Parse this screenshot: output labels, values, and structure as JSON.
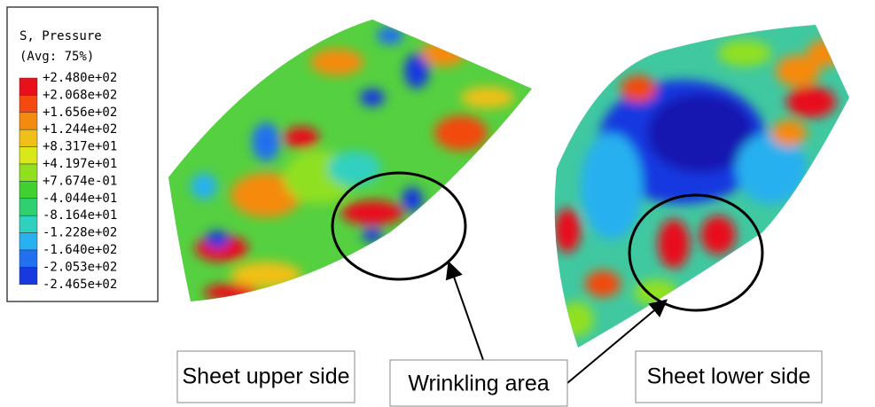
{
  "legend": {
    "title": "S, Pressure",
    "subtitle": "(Avg: 75%)",
    "levels": [
      "+2.480e+02",
      "+2.068e+02",
      "+1.656e+02",
      "+1.244e+02",
      "+8.317e+01",
      "+4.197e+01",
      "+7.674e-01",
      "-4.044e+01",
      "-8.164e+01",
      "-1.228e+02",
      "-1.640e+02",
      "-2.053e+02",
      "-2.465e+02"
    ]
  },
  "captions": {
    "upper": "Sheet upper side",
    "wrinkling": "Wrinkling area",
    "lower": "Sheet lower side"
  }
}
